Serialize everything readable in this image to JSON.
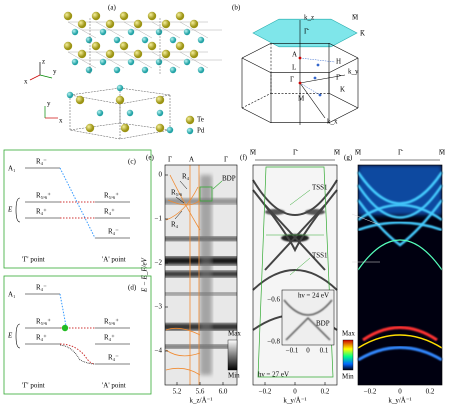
{
  "panel_a": {
    "label": "(a)",
    "axes_top": [
      "z",
      "x",
      "y"
    ],
    "axes_bottom": [
      "y",
      "x"
    ],
    "legend": [
      "Te",
      "Pd"
    ]
  },
  "panel_b": {
    "label": "(b)",
    "kz": "k_z",
    "M_bar": "M̄",
    "K_bar": "K̄",
    "Gamma_top": "Γ̄",
    "A": "A",
    "L": "L",
    "H": "H",
    "Gamma": "Γ",
    "K": "K",
    "M": "M",
    "ky": "k_y",
    "kx": "k_x",
    "Gamma_side": "Γ̄"
  },
  "panel_c": {
    "label": "(c)",
    "A1": "A₁",
    "E": "E",
    "left_top": "R₄⁻",
    "left_mid": "R₅,₆⁺",
    "left_low": "R₄⁺",
    "right_mid": "R₅,₆⁺",
    "right_low": "R₄⁺",
    "right_bottom": "R₄⁻",
    "gamma_point": "'Γ' point",
    "a_point": "'A' point"
  },
  "panel_d": {
    "label": "(d)",
    "A1": "A₁",
    "E": "E",
    "left_top": "R₄⁻",
    "left_mid": "R₅,₆⁺",
    "left_low": "R₄⁺",
    "right_mid": "R₅,₆⁺",
    "right_low": "R₄⁺",
    "right_bottom": "R₄⁻",
    "gamma_point": "'Γ' point",
    "a_point": "'A' point"
  },
  "panel_e": {
    "label": "(e)",
    "top_labels": [
      "Γ",
      "A",
      "Γ"
    ],
    "bands": [
      "R₄",
      "R₅,₆",
      "R₄"
    ],
    "bdp": "BDP",
    "yticks": [
      "0",
      "−1",
      "−2",
      "−3",
      "−4"
    ],
    "xticks": [
      "5.2",
      "5.6",
      "6.0"
    ],
    "ylabel": "E − E_F/eV",
    "xlabel": "k_z/Å⁻¹",
    "colorbar": [
      "Max",
      "Min"
    ]
  },
  "panel_f": {
    "label": "(f)",
    "top_labels": [
      "M̄",
      "Γ̄",
      "M̄"
    ],
    "tss_top": "TSS1",
    "tss_bottom": "TSS1",
    "inset_hv": "hν = 24 eV",
    "inset_bdp": "BDP",
    "inset_yticks": [
      "−0.6",
      "−0.8"
    ],
    "inset_xticks": [
      "−0.1",
      "0",
      "0.1"
    ],
    "hv": "hν = 27 eV",
    "xticks": [
      "−0.2",
      "0",
      "0.2"
    ],
    "xlabel": "k_y/Å⁻¹"
  },
  "panel_g": {
    "label": "(g)",
    "top_labels": [
      "M̄",
      "Γ̄",
      "M̄"
    ],
    "xticks": [
      "−0.2",
      "0",
      "0.2"
    ],
    "xlabel": "k_y/Å⁻¹",
    "colorbar": [
      "Max",
      "Min"
    ]
  }
}
